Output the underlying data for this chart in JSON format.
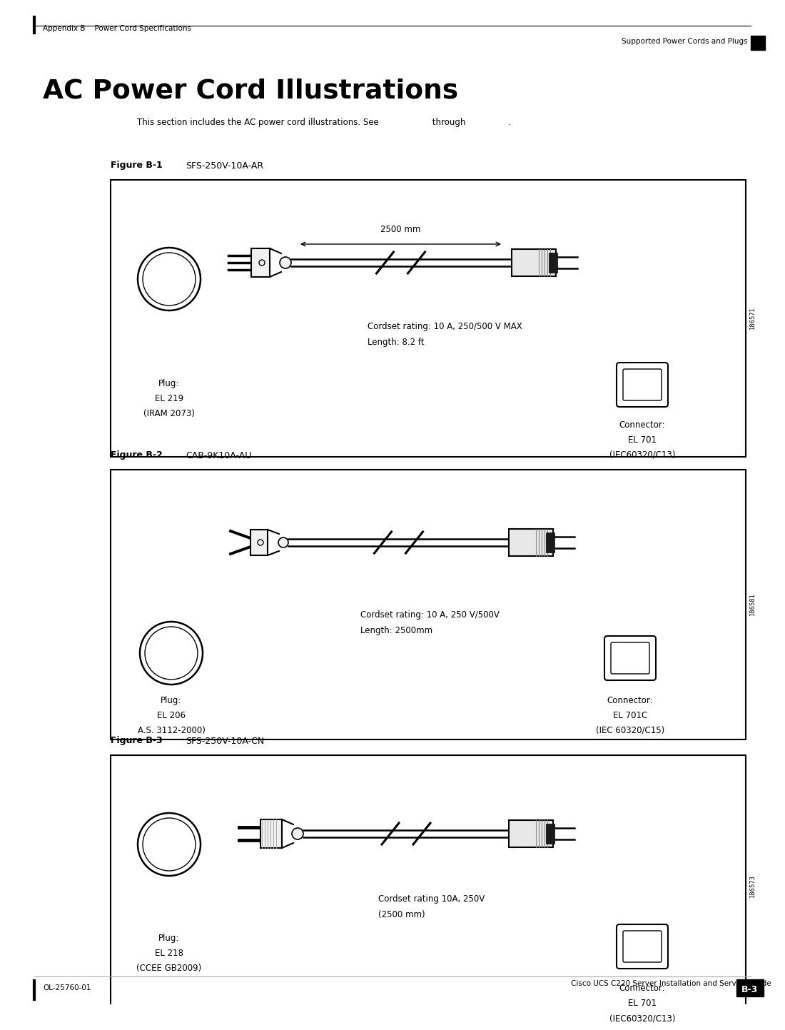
{
  "page_title": "AC Power Cord Illustrations",
  "header_left": "Appendix B    Power Cord Specifications",
  "header_right": "Supported Power Cords and Plugs",
  "footer_left": "OL-25760-01",
  "footer_center": "Cisco UCS C220 Server Installation and Service Guide",
  "footer_right": "B-3",
  "intro_text": "This section includes the AC power cord illustrations. See                    through                .",
  "figures": [
    {
      "label": "Figure B-1",
      "name": "SFS-250V-10A-AR",
      "cordset_text": "Cordset rating: 10 A, 250/500 V MAX\nLength: 8.2 ft",
      "length_label": "2500 mm",
      "plug_text": "Plug:\nEL 219\n(IRAM 2073)",
      "connector_text": "Connector:\nEL 701\n(IEC60320/C13)",
      "side_num": "186571",
      "plug_type": "AR",
      "connector_type": "C13"
    },
    {
      "label": "Figure B-2",
      "name": "CAB-9K10A-AU",
      "cordset_text": "Cordset rating: 10 A, 250 V/500V\nLength: 2500mm",
      "length_label": "",
      "plug_text": "Plug:\nEL 206\nA.S. 3112-2000)",
      "connector_text": "Connector:\nEL 701C\n(IEC 60320/C15)",
      "side_num": "186581",
      "plug_type": "AU",
      "connector_type": "C15"
    },
    {
      "label": "Figure B-3",
      "name": "SFS-250V-10A-CN",
      "cordset_text": "Cordset rating 10A, 250V\n(2500 mm)",
      "length_label": "",
      "plug_text": "Plug:\nEL 218\n(CCEE GB2009)",
      "connector_text": "Connector:\nEL 701\n(IEC60320/C13)",
      "side_num": "186573",
      "plug_type": "CN",
      "connector_type": "C13"
    }
  ],
  "bg_color": "#ffffff",
  "box_color": "#000000",
  "text_color": "#000000",
  "line_color": "#000000"
}
